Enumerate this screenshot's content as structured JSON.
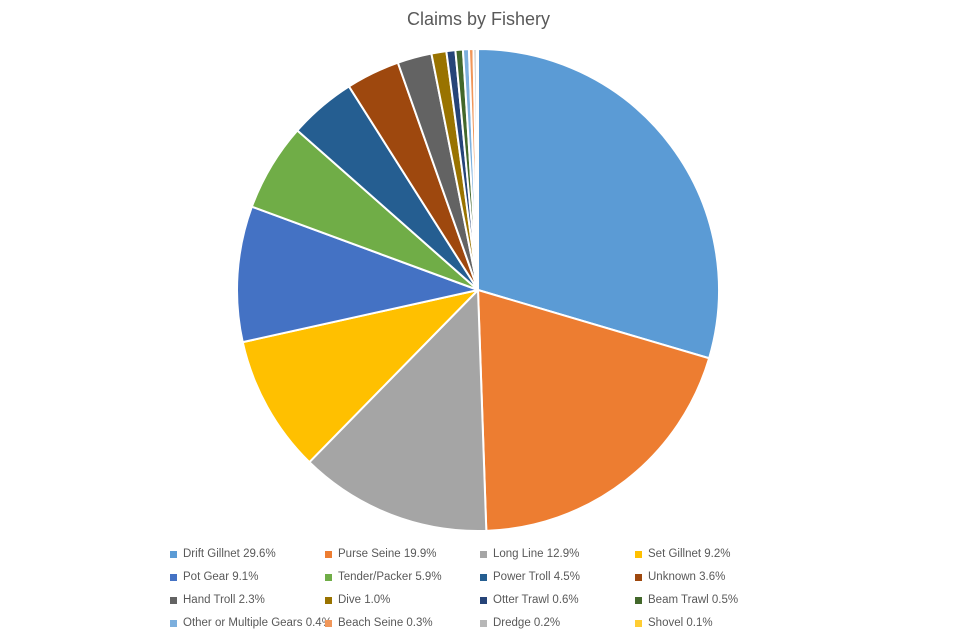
{
  "chart_data": {
    "type": "pie",
    "title": "Claims by Fishery",
    "legend_position": "bottom",
    "slices": [
      {
        "label": "Drift Gillnet 29.6%",
        "value": 29.6,
        "color": "#5B9BD5"
      },
      {
        "label": "Purse Seine 19.9%",
        "value": 19.9,
        "color": "#ED7D31"
      },
      {
        "label": "Long Line 12.9%",
        "value": 12.9,
        "color": "#A5A5A5"
      },
      {
        "label": "Set Gillnet 9.2%",
        "value": 9.2,
        "color": "#FFC000"
      },
      {
        "label": "Pot Gear 9.1%",
        "value": 9.1,
        "color": "#4472C4"
      },
      {
        "label": "Tender/Packer 5.9%",
        "value": 5.9,
        "color": "#70AD47"
      },
      {
        "label": "Power Troll 4.5%",
        "value": 4.5,
        "color": "#255E91"
      },
      {
        "label": "Unknown 3.6%",
        "value": 3.6,
        "color": "#9E480E"
      },
      {
        "label": "Hand Troll 2.3%",
        "value": 2.3,
        "color": "#636363"
      },
      {
        "label": "Dive 1.0%",
        "value": 1.0,
        "color": "#997300"
      },
      {
        "label": "Otter Trawl 0.6%",
        "value": 0.6,
        "color": "#264478"
      },
      {
        "label": "Beam Trawl 0.5%",
        "value": 0.5,
        "color": "#43682B"
      },
      {
        "label": "Other or Multiple Gears 0.4%",
        "value": 0.4,
        "color": "#7CAFDD"
      },
      {
        "label": "Beach Seine 0.3%",
        "value": 0.3,
        "color": "#F1975A"
      },
      {
        "label": "Dredge 0.2%",
        "value": 0.2,
        "color": "#B7B7B7"
      },
      {
        "label": "Shovel 0.1%",
        "value": 0.1,
        "color": "#FFCD33"
      }
    ]
  }
}
